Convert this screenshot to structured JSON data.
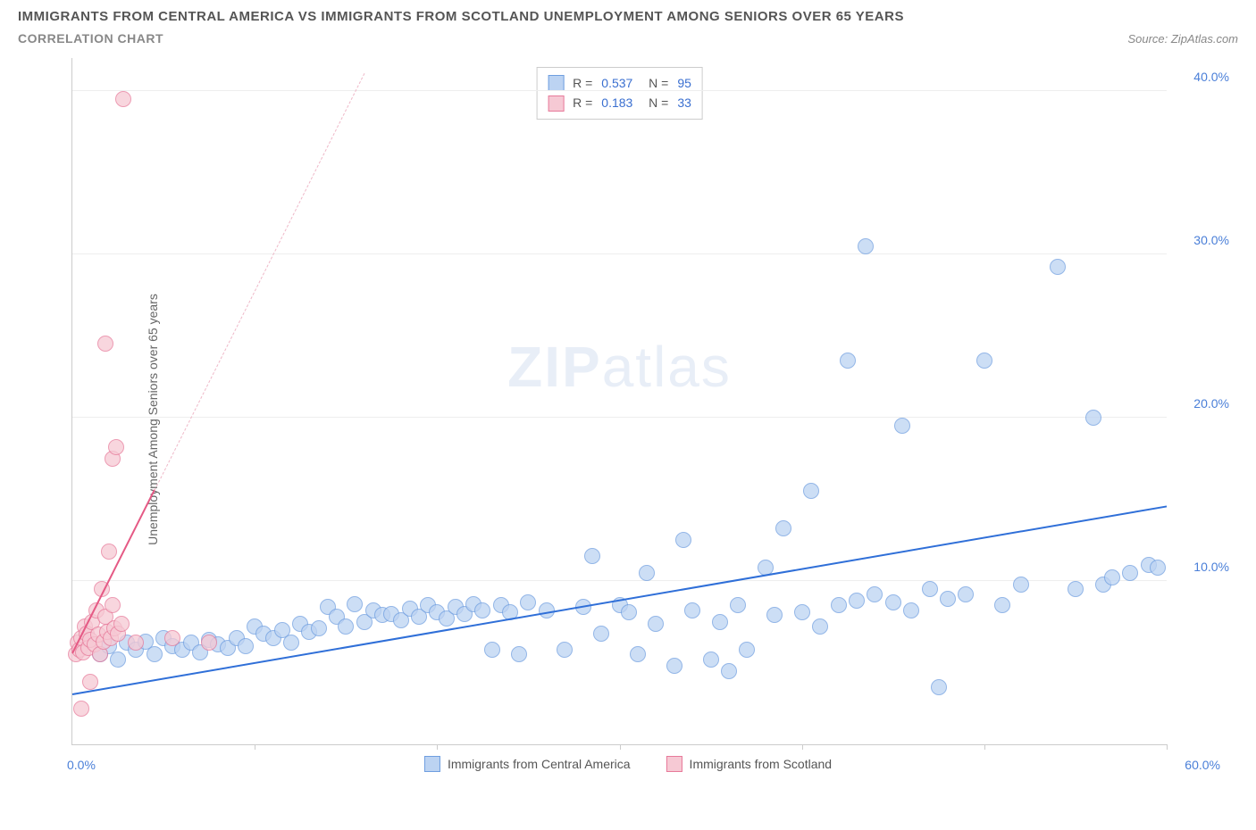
{
  "header": {
    "title_line1": "IMMIGRANTS FROM CENTRAL AMERICA VS IMMIGRANTS FROM SCOTLAND UNEMPLOYMENT AMONG SENIORS OVER 65 YEARS",
    "title_line2": "CORRELATION CHART",
    "source_label": "Source: ZipAtlas.com"
  },
  "chart": {
    "y_axis_label": "Unemployment Among Seniors over 65 years",
    "xlim": [
      0,
      60
    ],
    "ylim": [
      0,
      42
    ],
    "x_origin_label": "0.0%",
    "x_max_label": "60.0%",
    "x_ticks": [
      0,
      10,
      20,
      30,
      40,
      50,
      60
    ],
    "y_ticks": [
      {
        "v": 10,
        "label": "10.0%"
      },
      {
        "v": 20,
        "label": "20.0%"
      },
      {
        "v": 30,
        "label": "30.0%"
      },
      {
        "v": 40,
        "label": "40.0%"
      }
    ],
    "grid_color": "#eeeeee",
    "axis_color": "#cccccc",
    "background_color": "#ffffff",
    "watermark": {
      "bold": "ZIP",
      "light": "atlas",
      "color": "#e8eef7"
    },
    "series": [
      {
        "id": "central_america",
        "label": "Immigrants from Central America",
        "fill": "#bcd3f2",
        "stroke": "#6f9ee0",
        "stroke_opacity": 0.9,
        "marker_radius": 9,
        "trend": {
          "x1": 0,
          "y1": 3.0,
          "x2": 60,
          "y2": 14.5,
          "color": "#2f6fd8",
          "width": 2.5,
          "dash": "solid"
        },
        "points": [
          [
            1.5,
            5.5
          ],
          [
            2,
            6
          ],
          [
            2.5,
            5.2
          ],
          [
            3,
            6.2
          ],
          [
            3.5,
            5.8
          ],
          [
            4,
            6.3
          ],
          [
            4.5,
            5.5
          ],
          [
            5,
            6.5
          ],
          [
            5.5,
            6
          ],
          [
            6,
            5.8
          ],
          [
            6.5,
            6.2
          ],
          [
            7,
            5.6
          ],
          [
            7.5,
            6.4
          ],
          [
            8,
            6.1
          ],
          [
            8.5,
            5.9
          ],
          [
            9,
            6.5
          ],
          [
            9.5,
            6
          ],
          [
            10,
            7.2
          ],
          [
            10.5,
            6.8
          ],
          [
            11,
            6.5
          ],
          [
            11.5,
            7
          ],
          [
            12,
            6.2
          ],
          [
            12.5,
            7.4
          ],
          [
            13,
            6.9
          ],
          [
            13.5,
            7.1
          ],
          [
            14,
            8.4
          ],
          [
            14.5,
            7.8
          ],
          [
            15,
            7.2
          ],
          [
            15.5,
            8.6
          ],
          [
            16,
            7.5
          ],
          [
            16.5,
            8.2
          ],
          [
            17,
            7.9
          ],
          [
            17.5,
            8
          ],
          [
            18,
            7.6
          ],
          [
            18.5,
            8.3
          ],
          [
            19,
            7.8
          ],
          [
            19.5,
            8.5
          ],
          [
            20,
            8.1
          ],
          [
            20.5,
            7.7
          ],
          [
            21,
            8.4
          ],
          [
            21.5,
            8
          ],
          [
            22,
            8.6
          ],
          [
            22.5,
            8.2
          ],
          [
            23,
            5.8
          ],
          [
            23.5,
            8.5
          ],
          [
            24,
            8.1
          ],
          [
            24.5,
            5.5
          ],
          [
            25,
            8.7
          ],
          [
            26,
            8.2
          ],
          [
            27,
            5.8
          ],
          [
            28,
            8.4
          ],
          [
            28.5,
            11.5
          ],
          [
            29,
            6.8
          ],
          [
            30,
            8.5
          ],
          [
            30.5,
            8.1
          ],
          [
            31,
            5.5
          ],
          [
            31.5,
            10.5
          ],
          [
            32,
            7.4
          ],
          [
            33,
            4.8
          ],
          [
            33.5,
            12.5
          ],
          [
            34,
            8.2
          ],
          [
            35,
            5.2
          ],
          [
            35.5,
            7.5
          ],
          [
            36,
            4.5
          ],
          [
            36.5,
            8.5
          ],
          [
            37,
            5.8
          ],
          [
            38,
            10.8
          ],
          [
            38.5,
            7.9
          ],
          [
            39,
            13.2
          ],
          [
            40,
            8.1
          ],
          [
            40.5,
            15.5
          ],
          [
            41,
            7.2
          ],
          [
            42,
            8.5
          ],
          [
            42.5,
            23.5
          ],
          [
            43,
            8.8
          ],
          [
            43.5,
            30.5
          ],
          [
            44,
            9.2
          ],
          [
            45,
            8.7
          ],
          [
            45.5,
            19.5
          ],
          [
            46,
            8.2
          ],
          [
            47,
            9.5
          ],
          [
            47.5,
            3.5
          ],
          [
            48,
            8.9
          ],
          [
            49,
            9.2
          ],
          [
            50,
            23.5
          ],
          [
            51,
            8.5
          ],
          [
            52,
            9.8
          ],
          [
            54,
            29.2
          ],
          [
            55,
            9.5
          ],
          [
            56,
            20
          ],
          [
            56.5,
            9.8
          ],
          [
            57,
            10.2
          ],
          [
            58,
            10.5
          ],
          [
            59,
            11
          ],
          [
            59.5,
            10.8
          ]
        ]
      },
      {
        "id": "scotland",
        "label": "Immigrants from Scotland",
        "fill": "#f6c9d4",
        "stroke": "#e77a9a",
        "stroke_opacity": 0.9,
        "marker_radius": 9,
        "trend_solid": {
          "x1": 0,
          "y1": 5.5,
          "x2": 4.5,
          "y2": 15.5,
          "color": "#e55a85",
          "width": 2,
          "dash": "solid"
        },
        "trend_dashed": {
          "x1": 4.5,
          "y1": 15.5,
          "x2": 16,
          "y2": 41,
          "color": "#efb8c8",
          "width": 1,
          "dash": "dashed"
        },
        "points": [
          [
            0.2,
            5.5
          ],
          [
            0.3,
            6.2
          ],
          [
            0.4,
            5.8
          ],
          [
            0.5,
            6.5
          ],
          [
            0.6,
            5.6
          ],
          [
            0.7,
            7.2
          ],
          [
            0.8,
            6.8
          ],
          [
            0.9,
            5.9
          ],
          [
            1.0,
            6.4
          ],
          [
            1.1,
            7.5
          ],
          [
            1.2,
            6.1
          ],
          [
            1.3,
            8.2
          ],
          [
            1.4,
            6.7
          ],
          [
            1.5,
            5.5
          ],
          [
            1.6,
            9.5
          ],
          [
            1.7,
            6.3
          ],
          [
            1.8,
            7.8
          ],
          [
            1.9,
            6.9
          ],
          [
            2.0,
            11.8
          ],
          [
            2.1,
            6.5
          ],
          [
            2.2,
            8.5
          ],
          [
            2.3,
            7.1
          ],
          [
            2.5,
            6.8
          ],
          [
            2.7,
            7.4
          ],
          [
            2.2,
            17.5
          ],
          [
            2.4,
            18.2
          ],
          [
            1.8,
            24.5
          ],
          [
            0.5,
            2.2
          ],
          [
            1.0,
            3.8
          ],
          [
            2.8,
            39.5
          ],
          [
            3.5,
            6.2
          ],
          [
            5.5,
            6.5
          ],
          [
            7.5,
            6.2
          ]
        ]
      }
    ],
    "stats_box": {
      "rows": [
        {
          "swatch_fill": "#bcd3f2",
          "swatch_stroke": "#6f9ee0",
          "r_label": "R =",
          "r": "0.537",
          "n_label": "N =",
          "n": "95"
        },
        {
          "swatch_fill": "#f6c9d4",
          "swatch_stroke": "#e77a9a",
          "r_label": "R =",
          "r": "0.183",
          "n_label": "N =",
          "n": "33"
        }
      ]
    },
    "bottom_legend": [
      {
        "swatch_fill": "#bcd3f2",
        "swatch_stroke": "#6f9ee0",
        "label": "Immigrants from Central America"
      },
      {
        "swatch_fill": "#f6c9d4",
        "swatch_stroke": "#e77a9a",
        "label": "Immigrants from Scotland"
      }
    ]
  }
}
